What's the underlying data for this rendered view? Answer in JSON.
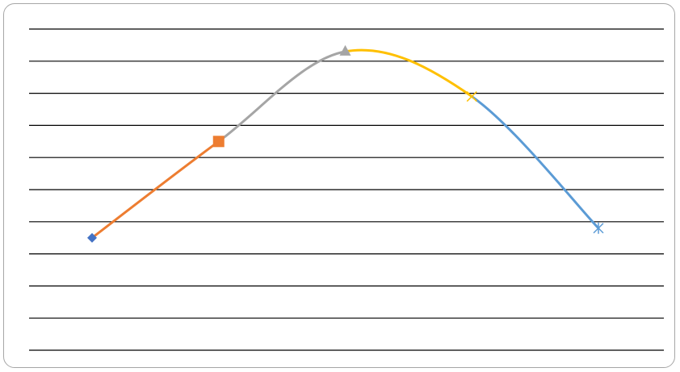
{
  "chart_data": {
    "type": "line",
    "smoothed": true,
    "grid": true,
    "ylim": [
      0,
      10
    ],
    "yticks": [
      0,
      1,
      2,
      3,
      4,
      5,
      6,
      7,
      8,
      9,
      10
    ],
    "x": [
      1,
      2,
      3,
      4,
      5
    ],
    "segments": [
      {
        "from": 0,
        "to": 1,
        "color": "#ed7d31"
      },
      {
        "from": 1,
        "to": 2,
        "color": "#a5a5a5"
      },
      {
        "from": 2,
        "to": 3,
        "color": "#ffc000"
      },
      {
        "from": 3,
        "to": 4,
        "color": "#5b9bd5"
      }
    ],
    "points": [
      {
        "x": 1,
        "y": 3.5,
        "marker": "diamond",
        "color": "#4472c4"
      },
      {
        "x": 2,
        "y": 6.5,
        "marker": "square",
        "color": "#ed7d31"
      },
      {
        "x": 3,
        "y": 9.3,
        "marker": "triangle",
        "color": "#a5a5a5"
      },
      {
        "x": 4,
        "y": 7.9,
        "marker": "x",
        "color": "#ffc000"
      },
      {
        "x": 5,
        "y": 3.8,
        "marker": "asterisk",
        "color": "#5b9bd5"
      }
    ]
  }
}
